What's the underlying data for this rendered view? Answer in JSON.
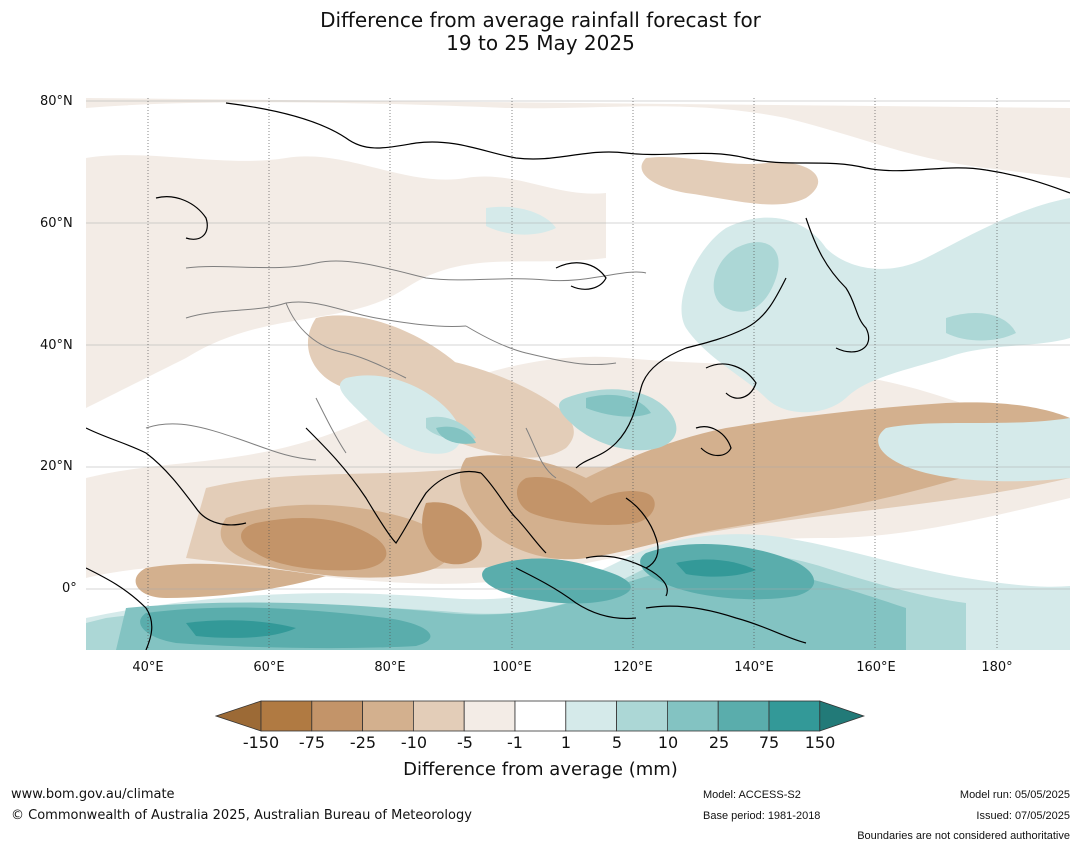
{
  "title": {
    "line1": "Difference from average rainfall forecast for",
    "line2": "19 to 25 May 2025"
  },
  "map": {
    "latitude_labels": [
      "80°N",
      "60°N",
      "40°N",
      "20°N",
      "0°"
    ],
    "longitude_labels": [
      "40°E",
      "60°E",
      "80°E",
      "100°E",
      "120°E",
      "140°E",
      "160°E",
      "180°"
    ]
  },
  "colorbar": {
    "ticks": [
      "-150",
      "-75",
      "-25",
      "-10",
      "-5",
      "-1",
      "1",
      "5",
      "10",
      "25",
      "75",
      "150"
    ],
    "colors": [
      "#9c6a36",
      "#b07a42",
      "#c39469",
      "#d3b08e",
      "#e3cdb8",
      "#f3ece6",
      "#ffffff",
      "#d5eaea",
      "#acd7d6",
      "#83c3c2",
      "#5aadac",
      "#339998",
      "#227a78"
    ],
    "label": "Difference from average (mm)"
  },
  "footer": {
    "url": "www.bom.gov.au/climate",
    "copyright": "© Commonwealth of Australia 2025, Australian Bureau of Meteorology",
    "model": "Model: ACCESS-S2",
    "base_period": "Base period: 1981-2018",
    "model_run": "Model run: 05/05/2025",
    "issued": "Issued: 07/05/2025",
    "disclaimer": "Boundaries are not considered authoritative"
  }
}
